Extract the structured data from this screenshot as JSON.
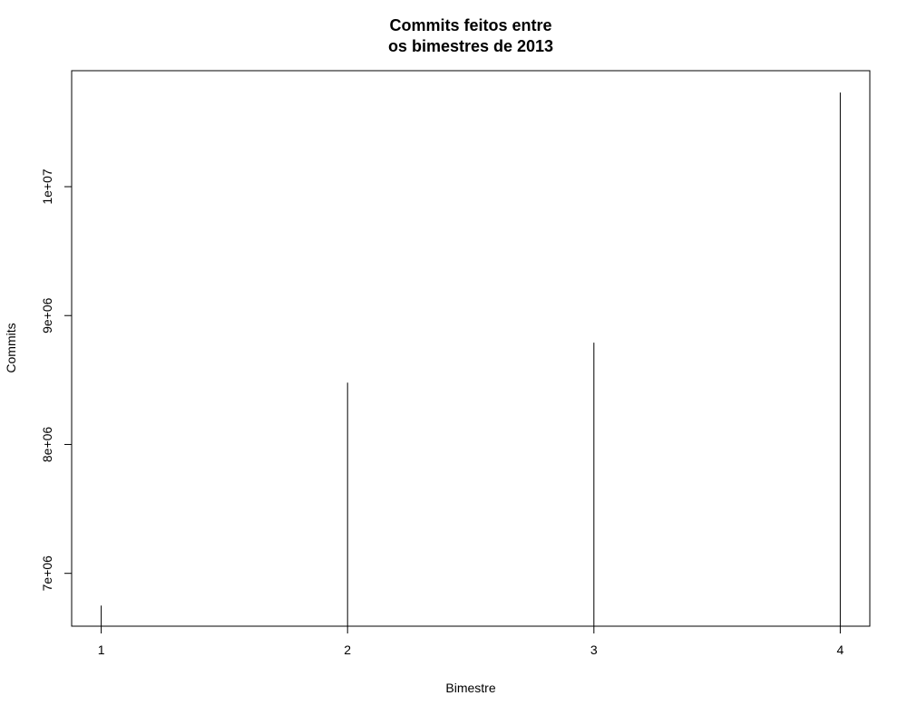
{
  "chart_data": {
    "type": "bar",
    "style": "histogram-lines",
    "title_lines": [
      "Commits feitos entre",
      "os bimestres de 2013"
    ],
    "xlabel": "Bimestre",
    "ylabel": "Commits",
    "categories": [
      1,
      2,
      3,
      4
    ],
    "x_ticks": [
      "1",
      "2",
      "3",
      "4"
    ],
    "y_ticks": [
      {
        "value": 7000000,
        "label": "7e+06"
      },
      {
        "value": 8000000,
        "label": "8e+06"
      },
      {
        "value": 9000000,
        "label": "9e+06"
      },
      {
        "value": 10000000,
        "label": "1e+07"
      }
    ],
    "values": [
      6750000,
      8480000,
      8790000,
      10730000
    ],
    "xlim": [
      0.88,
      4.12
    ],
    "ylim": [
      6590000,
      10900000
    ],
    "grid": false,
    "line_color": "#000000"
  }
}
